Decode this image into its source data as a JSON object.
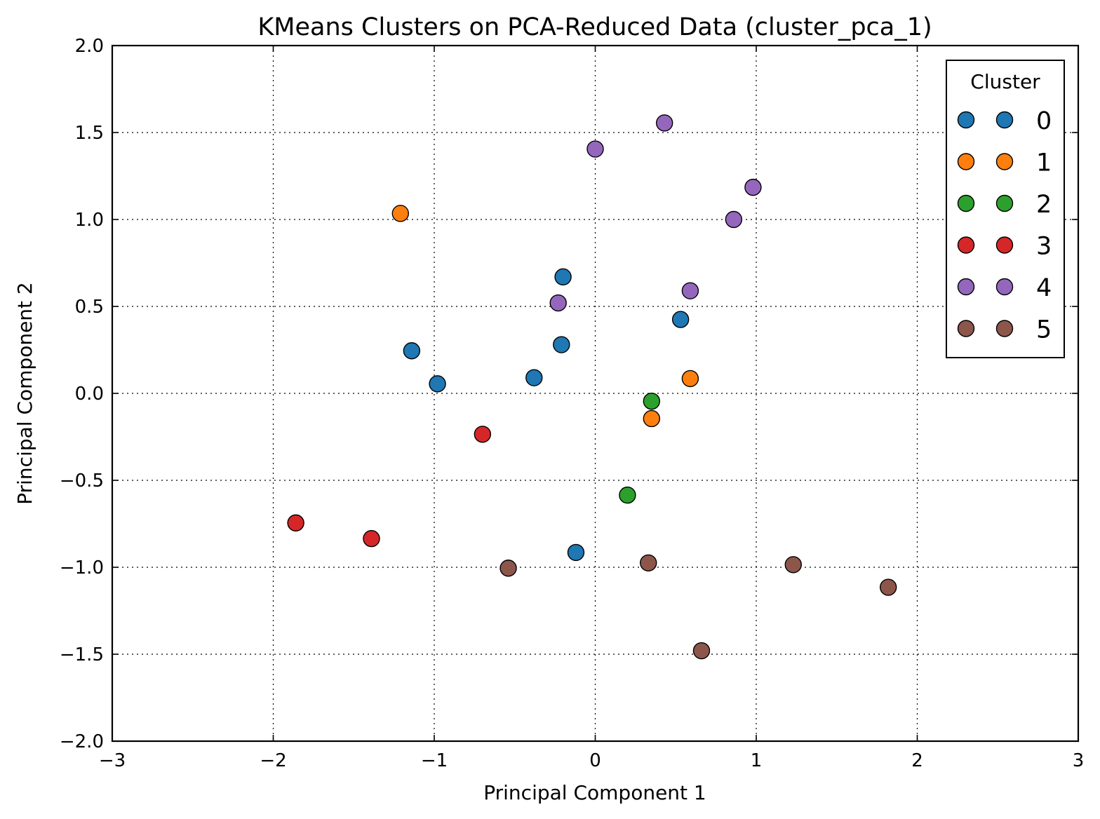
{
  "chart_data": {
    "type": "scatter",
    "title": "KMeans Clusters on PCA-Reduced Data (cluster_pca_1)",
    "xlabel": "Principal Component 1",
    "ylabel": "Principal Component 2",
    "xlim": [
      -3,
      3
    ],
    "ylim": [
      -2.0,
      2.0
    ],
    "x_ticks": [
      -3,
      -2,
      -1,
      0,
      1,
      2,
      3
    ],
    "x_tick_labels": [
      "−3",
      "−2",
      "−1",
      "0",
      "1",
      "2",
      "3"
    ],
    "y_ticks": [
      -2.0,
      -1.5,
      -1.0,
      -0.5,
      0.0,
      0.5,
      1.0,
      1.5,
      2.0
    ],
    "y_tick_labels": [
      "−2.0",
      "−1.5",
      "−1.0",
      "−0.5",
      "0.0",
      "0.5",
      "1.0",
      "1.5",
      "2.0"
    ],
    "grid": true,
    "legend": {
      "title": "Cluster",
      "placement": "top-right"
    },
    "series": [
      {
        "name": "0",
        "color": "#1f77b4",
        "points": [
          [
            -1.14,
            0.245
          ],
          [
            -0.98,
            0.055
          ],
          [
            -0.38,
            0.09
          ],
          [
            -0.21,
            0.28
          ],
          [
            -0.2,
            0.67
          ],
          [
            0.53,
            0.425
          ],
          [
            -0.12,
            -0.915
          ]
        ]
      },
      {
        "name": "1",
        "color": "#ff7f0e",
        "points": [
          [
            -1.21,
            1.035
          ],
          [
            0.59,
            0.085
          ],
          [
            0.35,
            -0.145
          ]
        ]
      },
      {
        "name": "2",
        "color": "#2ca02c",
        "points": [
          [
            0.35,
            -0.045
          ],
          [
            0.2,
            -0.585
          ]
        ]
      },
      {
        "name": "3",
        "color": "#d62728",
        "points": [
          [
            -0.7,
            -0.235
          ],
          [
            -1.86,
            -0.745
          ],
          [
            -1.39,
            -0.835
          ]
        ]
      },
      {
        "name": "4",
        "color": "#9467bd",
        "points": [
          [
            0.43,
            1.555
          ],
          [
            0.0,
            1.405
          ],
          [
            0.98,
            1.185
          ],
          [
            0.86,
            1.0
          ],
          [
            0.59,
            0.59
          ],
          [
            -0.23,
            0.52
          ]
        ]
      },
      {
        "name": "5",
        "color": "#8c564b",
        "points": [
          [
            -0.54,
            -1.005
          ],
          [
            0.33,
            -0.975
          ],
          [
            1.23,
            -0.985
          ],
          [
            1.82,
            -1.115
          ],
          [
            0.66,
            -1.48
          ]
        ]
      }
    ]
  }
}
